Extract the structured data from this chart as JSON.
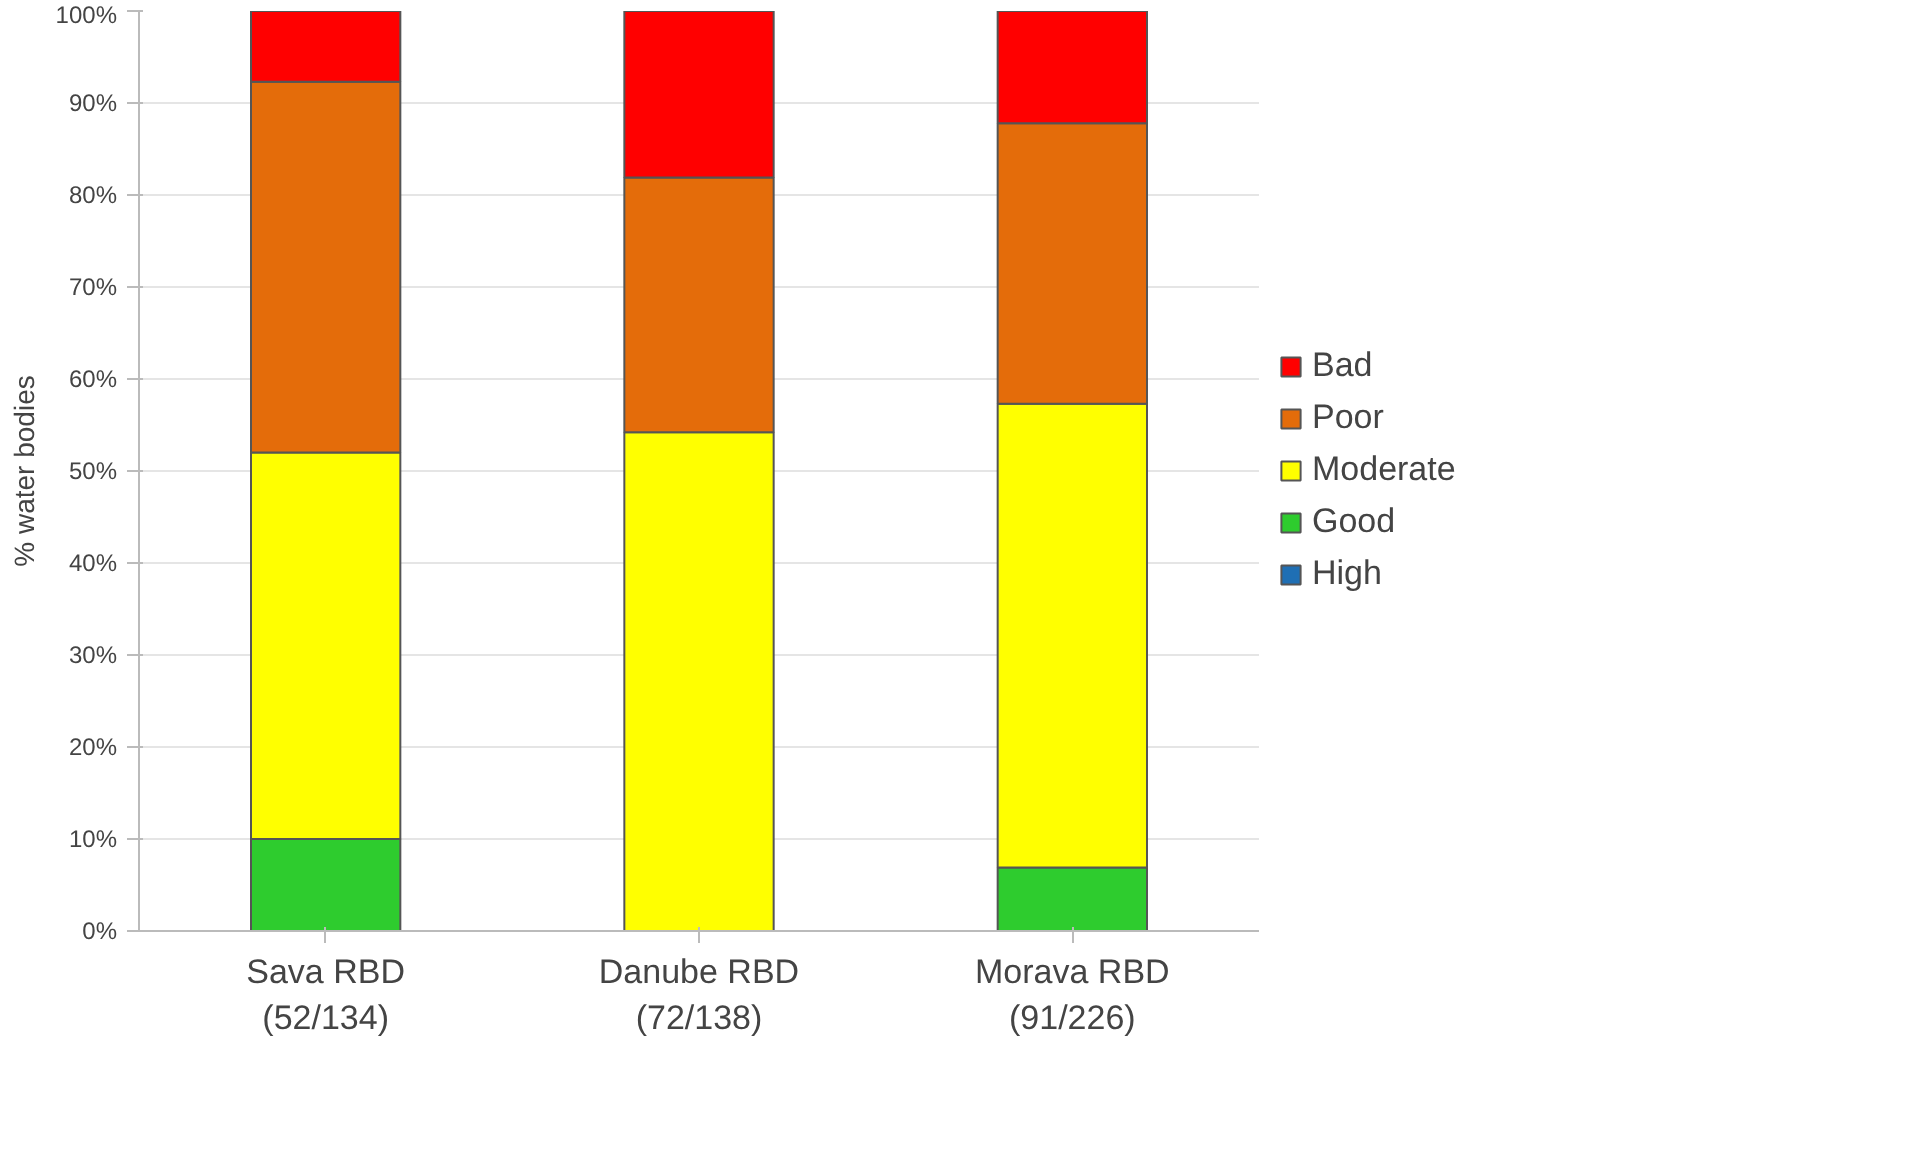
{
  "chart_data": {
    "type": "bar",
    "stacked": true,
    "ylabel": "% water bodies",
    "categories": [
      "Sava RBD\n(52/134)",
      "Danube RBD\n(72/138)",
      "Morava RBD\n(91/226)"
    ],
    "series": [
      {
        "name": "High",
        "color": "#1f6fb4",
        "values": [
          0,
          0,
          0
        ]
      },
      {
        "name": "Good",
        "color": "#2ecc2e",
        "values": [
          10,
          0,
          6.9
        ]
      },
      {
        "name": "Moderate",
        "color": "#ffff00",
        "values": [
          42,
          54.2,
          50.4
        ]
      },
      {
        "name": "Poor",
        "color": "#e46c0a",
        "values": [
          40.3,
          27.7,
          30.5
        ]
      },
      {
        "name": "Bad",
        "color": "#ff0000",
        "values": [
          7.7,
          18.1,
          12.2
        ]
      }
    ],
    "ylim": [
      0,
      100
    ],
    "yticks": [
      {
        "value": 0,
        "label": "0%"
      },
      {
        "value": 10,
        "label": "10%"
      },
      {
        "value": 20,
        "label": "20%"
      },
      {
        "value": 30,
        "label": "30%"
      },
      {
        "value": 40,
        "label": "40%"
      },
      {
        "value": 50,
        "label": "50%"
      },
      {
        "value": 60,
        "label": "60%"
      },
      {
        "value": 70,
        "label": "70%"
      },
      {
        "value": 80,
        "label": "80%"
      },
      {
        "value": 90,
        "label": "90%"
      },
      {
        "value": 100,
        "label": "100%"
      }
    ],
    "grid": "y",
    "legend": "right"
  }
}
